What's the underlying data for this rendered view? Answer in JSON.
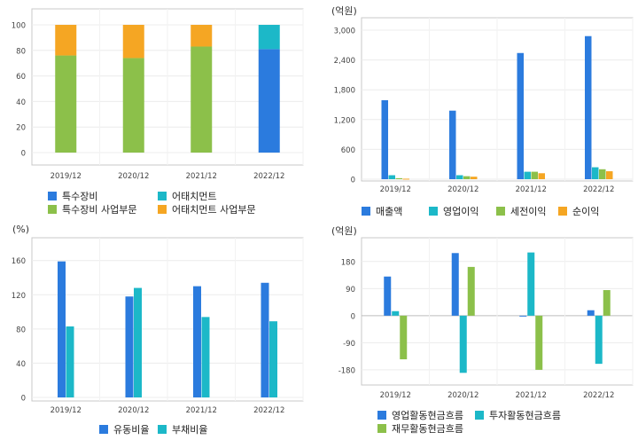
{
  "colors": {
    "blue": "#2b7bde",
    "cyan": "#1cb8c8",
    "green": "#8cc04a",
    "orange": "#f5a623"
  },
  "chart_data": [
    {
      "id": "c1",
      "type": "bar",
      "stacked": true,
      "categories": [
        "2019/12",
        "2020/12",
        "2021/12",
        "2022/12"
      ],
      "yticks": [
        0,
        20,
        40,
        60,
        80,
        100
      ],
      "ylim": [
        0,
        100
      ],
      "series": [
        {
          "name": "특수장비",
          "color": "#2b7bde",
          "values": [
            0,
            0,
            0,
            81
          ]
        },
        {
          "name": "어태치먼트",
          "color": "#1cb8c8",
          "values": [
            0,
            0,
            0,
            19
          ]
        },
        {
          "name": "특수장비 사업부문",
          "color": "#8cc04a",
          "values": [
            76,
            74,
            83,
            0
          ]
        },
        {
          "name": "어태치먼트 사업부문",
          "color": "#f5a623",
          "values": [
            24,
            26,
            17,
            0
          ]
        }
      ],
      "legend_layout": "grid"
    },
    {
      "id": "c2",
      "type": "bar",
      "unit": "(억원)",
      "categories": [
        "2019/12",
        "2020/12",
        "2021/12",
        "2022/12"
      ],
      "yticks": [
        0,
        600,
        1200,
        1800,
        2400,
        3000
      ],
      "ytick_labels": [
        "0",
        "600",
        "1,200",
        "1,800",
        "2,400",
        "3,000"
      ],
      "ylim": [
        0,
        3000
      ],
      "series": [
        {
          "name": "매출액",
          "color": "#2b7bde",
          "values": [
            1590,
            1380,
            2540,
            2880
          ]
        },
        {
          "name": "영업이익",
          "color": "#1cb8c8",
          "values": [
            80,
            80,
            150,
            240
          ]
        },
        {
          "name": "세전이익",
          "color": "#8cc04a",
          "values": [
            20,
            60,
            150,
            200
          ]
        },
        {
          "name": "순이익",
          "color": "#f5a623",
          "values": [
            10,
            50,
            120,
            160
          ]
        }
      ],
      "legend_layout": "row"
    },
    {
      "id": "c3",
      "type": "bar",
      "unit": "(%)",
      "categories": [
        "2019/12",
        "2020/12",
        "2021/12",
        "2022/12"
      ],
      "yticks": [
        0,
        40,
        80,
        120,
        160
      ],
      "ylim": [
        0,
        168
      ],
      "series": [
        {
          "name": "유동비율",
          "color": "#2b7bde",
          "values": [
            159,
            118,
            130,
            134
          ]
        },
        {
          "name": "부채비율",
          "color": "#1cb8c8",
          "values": [
            83,
            128,
            94,
            89
          ]
        }
      ],
      "legend_layout": "row"
    },
    {
      "id": "c4",
      "type": "bar",
      "unit": "(억원)",
      "categories": [
        "2019/12",
        "2020/12",
        "2021/12",
        "2022/12"
      ],
      "yticks": [
        -180,
        -90,
        0,
        90,
        180
      ],
      "ylim": [
        -195,
        200
      ],
      "series": [
        {
          "name": "영업활동현금흐름",
          "color": "#2b7bde",
          "values": [
            130,
            208,
            -2,
            18
          ]
        },
        {
          "name": "투자활동현금흐름",
          "color": "#1cb8c8",
          "values": [
            15,
            -190,
            210,
            -160
          ]
        },
        {
          "name": "재무활동현금흐름",
          "color": "#8cc04a",
          "values": [
            -145,
            162,
            -180,
            85
          ]
        }
      ],
      "legend_layout": "grid"
    }
  ]
}
